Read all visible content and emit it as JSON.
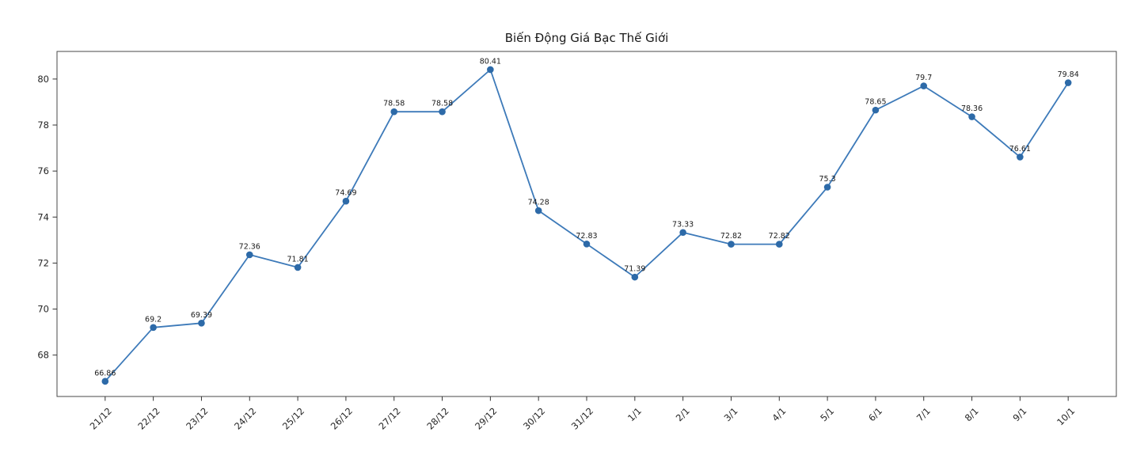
{
  "title": "Biến Động Giá Bạc Thế Giới",
  "chart_data": {
    "type": "line",
    "title": "Biến Động Giá Bạc Thế Giới",
    "xlabel": "",
    "ylabel": "",
    "categories": [
      "21/12",
      "22/12",
      "23/12",
      "24/12",
      "25/12",
      "26/12",
      "27/12",
      "28/12",
      "29/12",
      "30/12",
      "31/12",
      "1/1",
      "2/1",
      "3/1",
      "4/1",
      "5/1",
      "6/1",
      "7/1",
      "8/1",
      "9/1",
      "10/1"
    ],
    "values": [
      66.86,
      69.2,
      69.39,
      72.36,
      71.81,
      74.69,
      78.58,
      78.58,
      80.41,
      74.28,
      72.83,
      71.39,
      73.33,
      72.82,
      72.82,
      75.3,
      78.65,
      79.7,
      78.36,
      76.61,
      79.84
    ],
    "point_labels": [
      "66.86",
      "69.2",
      "69.39",
      "72.36",
      "71.81",
      "74.69",
      "78.58",
      "78.58",
      "80.41",
      "74.28",
      "72.83",
      "71.39",
      "73.33",
      "72.82",
      "72.82",
      "75.3",
      "78.65",
      "79.7",
      "78.36",
      "76.61",
      "79.84"
    ],
    "yticks": [
      68,
      70,
      72,
      74,
      76,
      78,
      80
    ],
    "ylim": [
      66.2,
      81.2
    ],
    "x_margin_units": 1,
    "grid": false,
    "legend_position": "none",
    "x_tick_rotation_deg": 45,
    "line_color": "#3d7ab9",
    "marker_color": "#2d6aa8",
    "spine_color": "#4a4a4a",
    "tick_color": "#333333"
  }
}
